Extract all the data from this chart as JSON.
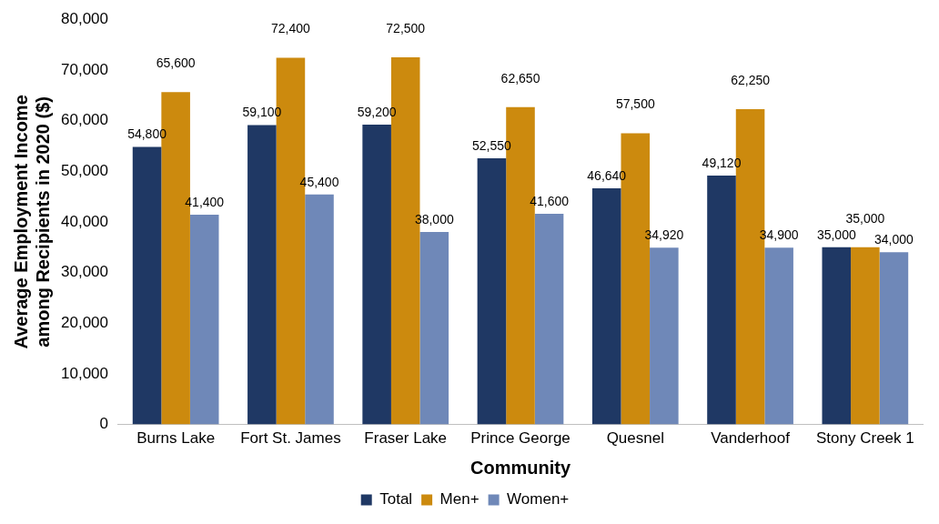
{
  "chart_data": {
    "type": "bar",
    "xlabel": "Community",
    "ylabel": "Average Employment Income among Recipients in 2020 ($)",
    "categories": [
      "Burns Lake",
      "Fort St. James",
      "Fraser Lake",
      "Prince George",
      "Quesnel",
      "Vanderhoof",
      "Stony Creek 1"
    ],
    "series": [
      {
        "name": "Total",
        "color": "#1f3864",
        "values": [
          54800,
          59100,
          59200,
          52550,
          46640,
          49120,
          35000
        ],
        "value_labels": [
          "54,800",
          "59,100",
          "59,200",
          "52,550",
          "46,640",
          "49,120",
          "35,000"
        ]
      },
      {
        "name": "Men+",
        "color": "#cc8a0e",
        "values": [
          65600,
          72400,
          72500,
          62650,
          57500,
          62250,
          35000
        ],
        "value_labels": [
          "65,600",
          "72,400",
          "72,500",
          "62,650",
          "57,500",
          "62,250",
          "35,000"
        ]
      },
      {
        "name": "Women+",
        "color": "#6f88b8",
        "values": [
          41400,
          45400,
          38000,
          41600,
          34920,
          34900,
          34000
        ],
        "value_labels": [
          "41,400",
          "45,400",
          "38,000",
          "41,600",
          "34,920",
          "34,900",
          "34,000"
        ]
      }
    ],
    "ylim": [
      0,
      80000
    ],
    "yticks": [
      0,
      {
        "value": 10000,
        "label": "10,000"
      },
      {
        "value": 20000,
        "label": "20,000"
      },
      {
        "value": 30000,
        "label": "30,000"
      },
      {
        "value": 40000,
        "label": "40,000"
      },
      {
        "value": 50000,
        "label": "50,000"
      },
      {
        "value": 60000,
        "label": "60,000"
      },
      {
        "value": 70000,
        "label": "70,000"
      },
      {
        "value": 80000,
        "label": "80,000"
      }
    ],
    "grid": false,
    "legend": "bottom"
  }
}
